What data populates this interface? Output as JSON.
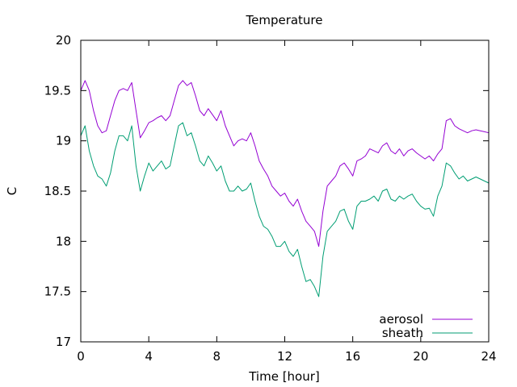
{
  "chart_data": {
    "type": "line",
    "title": "Temperature",
    "xlabel": "Time [hour]",
    "ylabel": "C",
    "xlim": [
      0,
      24
    ],
    "ylim": [
      17,
      20
    ],
    "xticks": [
      0,
      4,
      8,
      12,
      16,
      20,
      24
    ],
    "xtick_labels": [
      "0",
      "4",
      "8",
      "12",
      "16",
      "20",
      "24"
    ],
    "yticks": [
      17,
      17.5,
      18,
      18.5,
      19,
      19.5,
      20
    ],
    "ytick_labels": [
      "17",
      "17.5",
      "18",
      "18.5",
      "19",
      "19.5",
      "20"
    ],
    "grid": false,
    "legend_position": "bottom-right",
    "series": [
      {
        "name": "aerosol",
        "color": "#9400d3",
        "x": [
          0,
          0.25,
          0.5,
          0.75,
          1.0,
          1.25,
          1.5,
          1.75,
          2.0,
          2.25,
          2.5,
          2.75,
          3.0,
          3.25,
          3.5,
          3.75,
          4.0,
          4.25,
          4.5,
          4.75,
          5.0,
          5.25,
          5.5,
          5.75,
          6.0,
          6.25,
          6.5,
          6.75,
          7.0,
          7.25,
          7.5,
          7.75,
          8.0,
          8.25,
          8.5,
          8.75,
          9.0,
          9.25,
          9.5,
          9.75,
          10.0,
          10.25,
          10.5,
          10.75,
          11.0,
          11.25,
          11.5,
          11.75,
          12.0,
          12.25,
          12.5,
          12.75,
          13.0,
          13.25,
          13.5,
          13.75,
          14.0,
          14.25,
          14.5,
          14.75,
          15.0,
          15.25,
          15.5,
          15.75,
          16.0,
          16.25,
          16.5,
          16.75,
          17.0,
          17.25,
          17.5,
          17.75,
          18.0,
          18.25,
          18.5,
          18.75,
          19.0,
          19.25,
          19.5,
          19.75,
          20.0,
          20.25,
          20.5,
          20.75,
          21.0,
          21.25,
          21.5,
          21.75,
          22.0,
          22.25,
          22.5,
          22.75,
          23.0,
          23.25,
          23.5,
          23.75,
          24.0
        ],
        "y": [
          19.5,
          19.6,
          19.5,
          19.3,
          19.15,
          19.08,
          19.1,
          19.25,
          19.4,
          19.5,
          19.52,
          19.5,
          19.58,
          19.3,
          19.03,
          19.1,
          19.18,
          19.2,
          19.23,
          19.25,
          19.2,
          19.25,
          19.4,
          19.55,
          19.6,
          19.55,
          19.58,
          19.45,
          19.3,
          19.25,
          19.32,
          19.26,
          19.2,
          19.3,
          19.15,
          19.05,
          18.95,
          19.0,
          19.02,
          19.0,
          19.08,
          18.95,
          18.8,
          18.72,
          18.65,
          18.55,
          18.5,
          18.45,
          18.48,
          18.4,
          18.35,
          18.42,
          18.3,
          18.2,
          18.15,
          18.1,
          17.95,
          18.3,
          18.55,
          18.6,
          18.65,
          18.75,
          18.78,
          18.72,
          18.65,
          18.8,
          18.82,
          18.85,
          18.92,
          18.9,
          18.88,
          18.95,
          18.98,
          18.9,
          18.87,
          18.92,
          18.85,
          18.9,
          18.92,
          18.88,
          18.85,
          18.82,
          18.85,
          18.8,
          18.87,
          18.92,
          19.2,
          19.22,
          19.15,
          19.12,
          19.1,
          19.08,
          19.1,
          19.11,
          19.1,
          19.09,
          19.08
        ]
      },
      {
        "name": "sheath",
        "color": "#009e73",
        "x": [
          0,
          0.25,
          0.5,
          0.75,
          1.0,
          1.25,
          1.5,
          1.75,
          2.0,
          2.25,
          2.5,
          2.75,
          3.0,
          3.25,
          3.5,
          3.75,
          4.0,
          4.25,
          4.5,
          4.75,
          5.0,
          5.25,
          5.5,
          5.75,
          6.0,
          6.25,
          6.5,
          6.75,
          7.0,
          7.25,
          7.5,
          7.75,
          8.0,
          8.25,
          8.5,
          8.75,
          9.0,
          9.25,
          9.5,
          9.75,
          10.0,
          10.25,
          10.5,
          10.75,
          11.0,
          11.25,
          11.5,
          11.75,
          12.0,
          12.25,
          12.5,
          12.75,
          13.0,
          13.25,
          13.5,
          13.75,
          14.0,
          14.25,
          14.5,
          14.75,
          15.0,
          15.25,
          15.5,
          15.75,
          16.0,
          16.25,
          16.5,
          16.75,
          17.0,
          17.25,
          17.5,
          17.75,
          18.0,
          18.25,
          18.5,
          18.75,
          19.0,
          19.25,
          19.5,
          19.75,
          20.0,
          20.25,
          20.5,
          20.75,
          21.0,
          21.25,
          21.5,
          21.75,
          22.0,
          22.25,
          22.5,
          22.75,
          23.0,
          23.25,
          23.5,
          23.75,
          24.0
        ],
        "y": [
          19.05,
          19.15,
          18.9,
          18.75,
          18.65,
          18.62,
          18.55,
          18.68,
          18.9,
          19.05,
          19.05,
          19.0,
          19.15,
          18.75,
          18.5,
          18.65,
          18.78,
          18.7,
          18.75,
          18.8,
          18.72,
          18.75,
          18.95,
          19.15,
          19.18,
          19.05,
          19.08,
          18.95,
          18.8,
          18.75,
          18.85,
          18.78,
          18.7,
          18.75,
          18.6,
          18.5,
          18.5,
          18.55,
          18.5,
          18.52,
          18.58,
          18.4,
          18.25,
          18.15,
          18.12,
          18.05,
          17.95,
          17.95,
          18.0,
          17.9,
          17.85,
          17.92,
          17.75,
          17.6,
          17.62,
          17.55,
          17.45,
          17.85,
          18.1,
          18.15,
          18.2,
          18.3,
          18.32,
          18.2,
          18.12,
          18.35,
          18.4,
          18.4,
          18.42,
          18.45,
          18.4,
          18.5,
          18.52,
          18.42,
          18.4,
          18.45,
          18.42,
          18.45,
          18.47,
          18.4,
          18.35,
          18.32,
          18.33,
          18.25,
          18.45,
          18.55,
          18.78,
          18.75,
          18.68,
          18.62,
          18.65,
          18.6,
          18.62,
          18.64,
          18.62,
          18.6,
          18.58
        ]
      }
    ]
  }
}
